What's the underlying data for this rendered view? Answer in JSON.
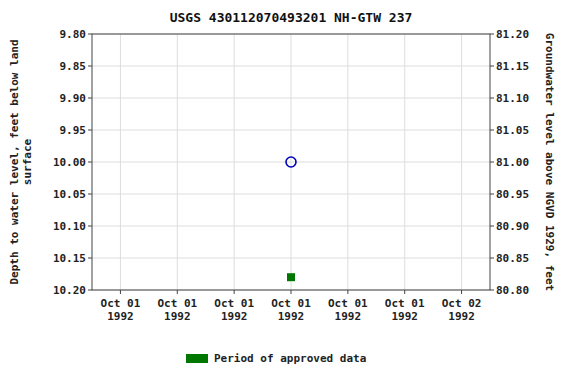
{
  "chart_data": {
    "type": "scatter",
    "title": "USGS 430112070493201 NH-GTW  237",
    "ylabel": "Depth to water level, feet below land\nsurface",
    "y2label": "Groundwater level above NGVD 1929, feet",
    "categories": [
      "Oct 01\n1992",
      "Oct 01\n1992",
      "Oct 01\n1992",
      "Oct 01\n1992",
      "Oct 01\n1992",
      "Oct 01\n1992",
      "Oct 02\n1992"
    ],
    "series": [
      {
        "color": "#0000bb",
        "marker": "open-circle",
        "values": [
          null,
          null,
          null,
          10.0,
          null,
          null,
          null
        ]
      },
      {
        "name": "Period of approved data",
        "color": "#007700",
        "marker": "square",
        "values": [
          null,
          null,
          null,
          10.18,
          null,
          null,
          null
        ]
      }
    ],
    "ylim": [
      10.2,
      9.8
    ],
    "yticks": [
      {
        "value": 9.8,
        "label": "9.80"
      },
      9.85,
      {
        "value": 9.9,
        "label": "9.90"
      },
      9.95,
      {
        "value": 10.0,
        "label": "10.00"
      },
      10.05,
      {
        "value": 10.1,
        "label": "10.10"
      },
      10.15,
      {
        "value": 10.2,
        "label": "10.20"
      }
    ],
    "y2lim": [
      80.8,
      81.2
    ],
    "y2ticks": [
      {
        "value": 81.2,
        "label": "81.20"
      },
      81.15,
      {
        "value": 81.1,
        "label": "81.10"
      },
      81.05,
      {
        "value": 81.0,
        "label": "81.00"
      },
      80.95,
      {
        "value": 80.9,
        "label": "80.90"
      },
      80.85,
      {
        "value": 80.8,
        "label": "80.80"
      }
    ],
    "grid": true,
    "legend": "bottom"
  }
}
